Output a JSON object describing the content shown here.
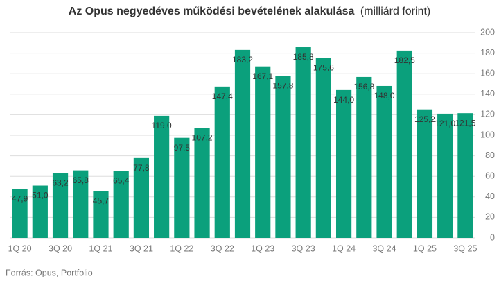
{
  "chart_data": {
    "type": "bar",
    "title": "Az Opus negyedéves működési bevételének alakulása",
    "title_note": "(milliárd forint)",
    "source": "Forrás: Opus, Portfolio",
    "categories": [
      "1Q 20",
      null,
      "3Q 20",
      null,
      "1Q 21",
      null,
      "3Q 21",
      null,
      "1Q 22",
      null,
      "3Q 22",
      null,
      "1Q 23",
      null,
      "3Q 23",
      null,
      "1Q 24",
      null,
      "3Q 24",
      null,
      "1Q 25",
      null,
      "3Q 25"
    ],
    "values": [
      47.9,
      51.0,
      63.2,
      65.8,
      45.7,
      65.4,
      77.8,
      119.0,
      97.5,
      107.2,
      147.4,
      183.2,
      167.1,
      157.8,
      185.8,
      175.6,
      144.0,
      156.8,
      148.0,
      182.5,
      125.2,
      121.0,
      121.5
    ],
    "value_labels": [
      "47,9",
      "51,0",
      "63,2",
      "65,8",
      "45,7",
      "65,4",
      "77,8",
      "119,0",
      "97,5",
      "107,2",
      "147,4",
      "183,2",
      "167,1",
      "157,8",
      "185,8",
      "175,6",
      "144,0",
      "156,8",
      "148,0",
      "182,5",
      "125,2",
      "121,0",
      "121,5"
    ],
    "color": "#0ba07c",
    "ylim": [
      0,
      200
    ],
    "yticks": [
      0,
      20,
      40,
      60,
      80,
      100,
      120,
      140,
      160,
      180,
      200
    ],
    "grid": true
  }
}
